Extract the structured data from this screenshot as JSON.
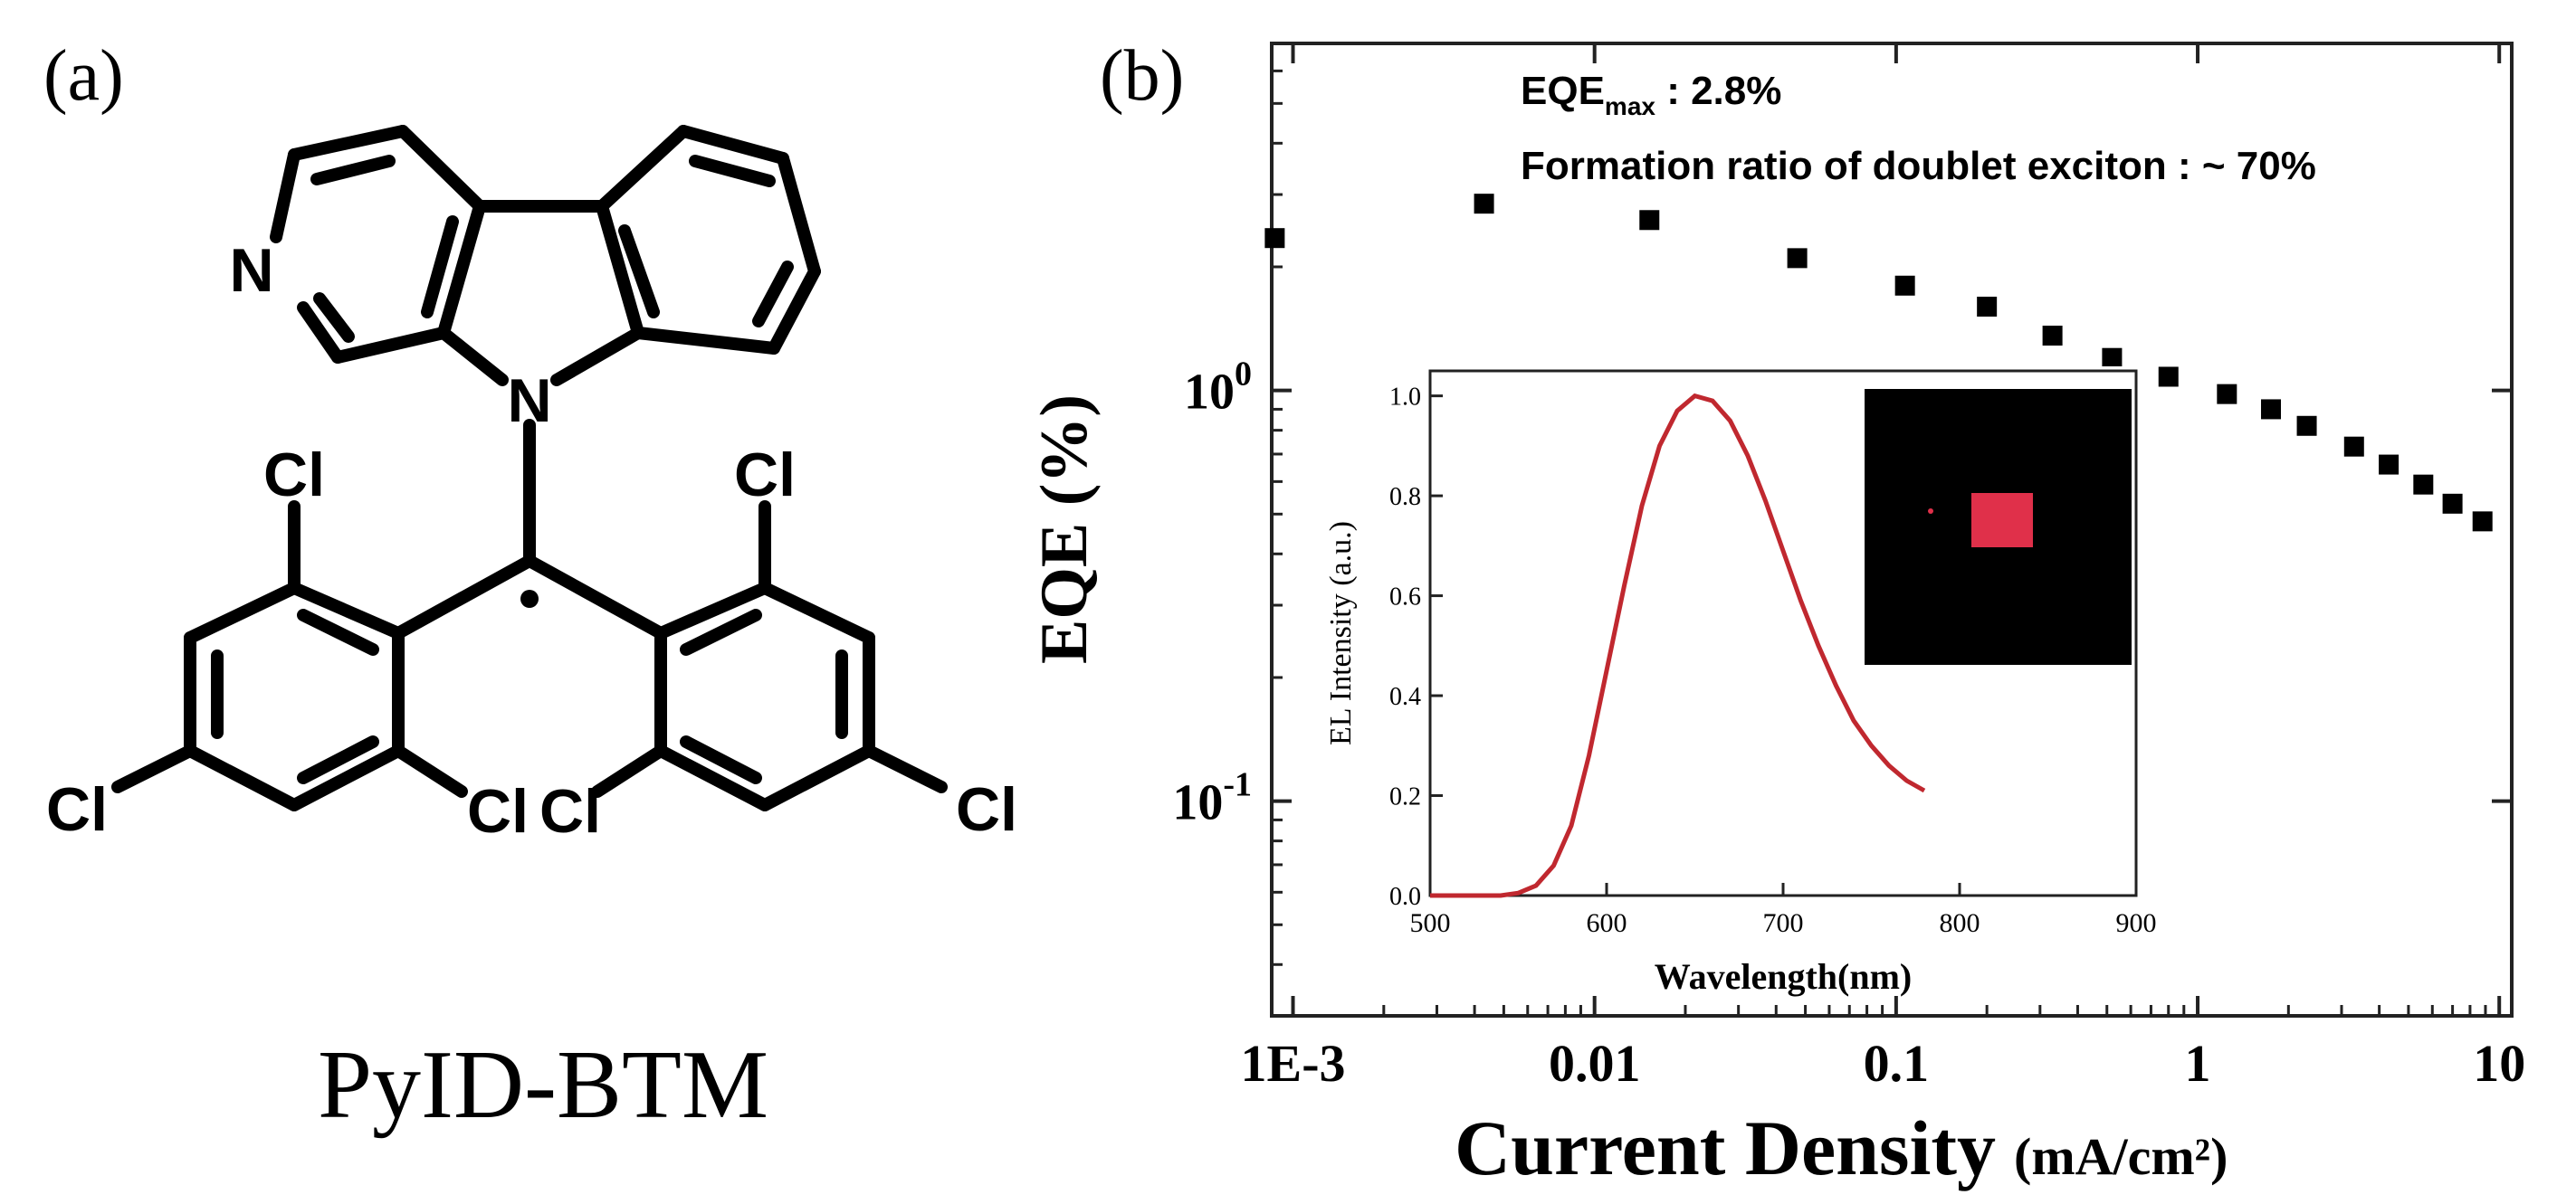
{
  "panel_a": {
    "label": "(a)",
    "compound_name": "PyID-BTM",
    "atoms": {
      "pyridine_n": "N",
      "carbazole_n": "N",
      "chlorines": [
        "Cl",
        "Cl",
        "Cl",
        "Cl",
        "Cl",
        "Cl"
      ]
    }
  },
  "panel_b": {
    "label": "(b)",
    "annotation_eqe_main": "EQE",
    "annotation_eqe_sub": "max",
    "annotation_eqe_value": " : 2.8%",
    "annotation_formation": "Formation ratio of doublet exciton : ~ 70%",
    "inset_photo": {
      "background_color": "#000000",
      "spot_color": "#e0304a"
    }
  },
  "chart_data": [
    {
      "type": "scatter",
      "xscale": "log",
      "yscale": "log",
      "xlabel_main": "Current Density",
      "xlabel_unit": "(mA/cm²)",
      "ylabel": "EQE (%)",
      "xlim": [
        0.00085,
        11
      ],
      "ylim": [
        0.03,
        7
      ],
      "x_ticks": [
        0.001,
        0.01,
        0.1,
        1,
        10
      ],
      "x_tick_labels": [
        "1E-3",
        "0.01",
        "0.1",
        "1",
        "10"
      ],
      "y_ticks": [
        0.1,
        1
      ],
      "y_tick_labels_base": [
        "10",
        "10"
      ],
      "y_tick_labels_exp": [
        "-1",
        "0"
      ],
      "marker_color": "#000000",
      "x": [
        0.00087,
        0.0043,
        0.0152,
        0.047,
        0.107,
        0.2,
        0.33,
        0.52,
        0.8,
        1.25,
        1.75,
        2.3,
        3.3,
        4.3,
        5.6,
        7.0,
        8.8
      ],
      "y": [
        2.35,
        2.85,
        2.6,
        2.1,
        1.8,
        1.6,
        1.36,
        1.2,
        1.08,
        0.98,
        0.9,
        0.82,
        0.73,
        0.66,
        0.59,
        0.53,
        0.48
      ]
    },
    {
      "type": "line",
      "xlabel": "Wavelength(nm)",
      "ylabel": "EL Intensity (a.u.)",
      "xlim": [
        500,
        900
      ],
      "ylim": [
        0,
        1.05
      ],
      "x_ticks": [
        500,
        600,
        700,
        800,
        900
      ],
      "x_tick_labels": [
        "500",
        "600",
        "700",
        "800",
        "900"
      ],
      "y_ticks": [
        0,
        0.2,
        0.4,
        0.6,
        0.8,
        1.0
      ],
      "y_tick_labels": [
        "0.0",
        "0.2",
        "0.4",
        "0.6",
        "0.8",
        "1.0"
      ],
      "line_color": "#c0282f",
      "x": [
        500,
        520,
        540,
        550,
        560,
        570,
        580,
        590,
        600,
        610,
        620,
        630,
        640,
        650,
        660,
        670,
        680,
        690,
        700,
        710,
        720,
        730,
        740,
        750,
        760,
        770,
        780
      ],
      "y": [
        0.0,
        0.0,
        0.0,
        0.005,
        0.02,
        0.06,
        0.14,
        0.28,
        0.45,
        0.62,
        0.78,
        0.9,
        0.97,
        1.0,
        0.99,
        0.95,
        0.88,
        0.79,
        0.69,
        0.59,
        0.5,
        0.42,
        0.35,
        0.3,
        0.26,
        0.23,
        0.21
      ]
    }
  ]
}
